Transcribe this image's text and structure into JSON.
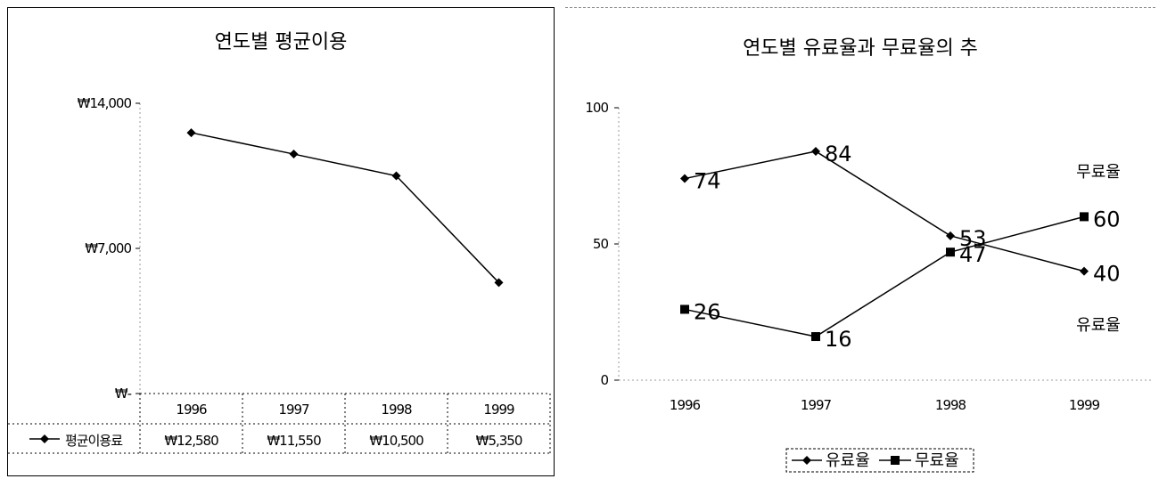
{
  "chart_data": [
    {
      "type": "line",
      "title": "연도별 평균이용",
      "categories": [
        "1996",
        "1997",
        "1998",
        "1999"
      ],
      "series": [
        {
          "name": "평균이용료",
          "values": [
            12580,
            11550,
            10500,
            5350
          ]
        }
      ],
      "y_tick_labels": [
        "₩14,000",
        "₩7,000",
        "₩-"
      ],
      "ylim": [
        0,
        14000
      ],
      "data_table": {
        "series_label": "평균이용료",
        "values": [
          "₩12,580",
          "₩11,550",
          "₩10,500",
          "₩5,350"
        ]
      },
      "grid": false,
      "legend": "data table"
    },
    {
      "type": "line",
      "title": "연도별 유료율과 무료율의 추",
      "categories": [
        "1996",
        "1997",
        "1998",
        "1999"
      ],
      "series": [
        {
          "name": "유료율",
          "values": [
            74,
            84,
            53,
            40
          ],
          "marker": "diamond"
        },
        {
          "name": "무료율",
          "values": [
            26,
            16,
            47,
            60
          ],
          "marker": "square"
        }
      ],
      "y_tick_labels": [
        "100",
        "50",
        "0"
      ],
      "ylim": [
        0,
        100
      ],
      "grid": false,
      "legend": "bottom",
      "annotations": [
        "무료율",
        "유료율"
      ]
    }
  ]
}
